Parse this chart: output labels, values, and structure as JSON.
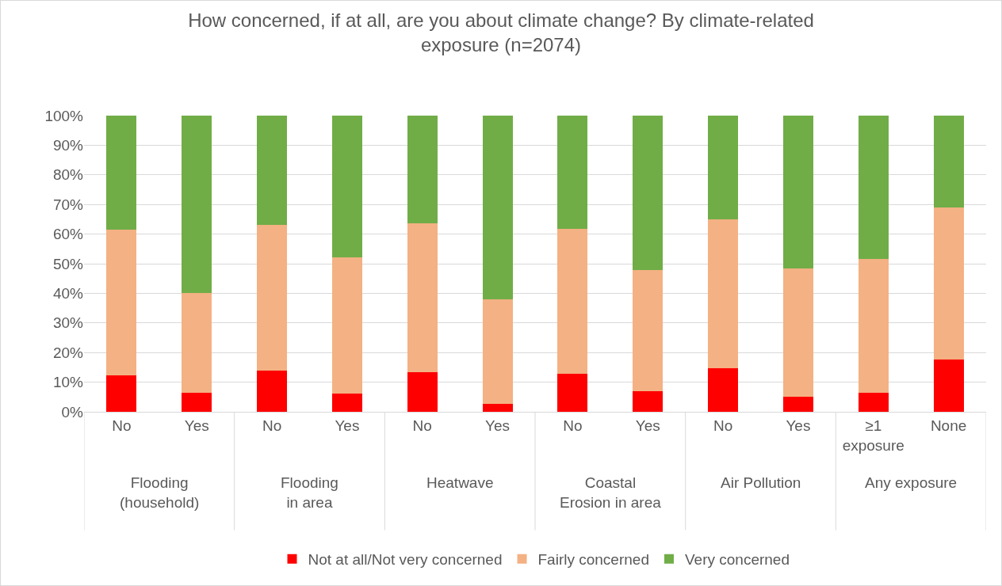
{
  "chart_data": {
    "type": "bar",
    "title": "How concerned, if at all, are you about climate change? By climate-related exposure (n=2074)",
    "categories": [
      "No",
      "Yes",
      "No",
      "Yes",
      "No",
      "Yes",
      "No",
      "Yes",
      "No",
      "Yes",
      "≥1 exposure",
      "None"
    ],
    "annotations": [
      "Flooding (household)",
      "Flooding in area",
      "Heatwave",
      "Coastal Erosion in area",
      "Air Pollution",
      "Any exposure"
    ],
    "stacked": true,
    "series": [
      {
        "name": "Not at all/Not very concerned",
        "color": "#ff0000",
        "values": [
          12.2,
          6.4,
          13.8,
          6.1,
          13.3,
          2.7,
          12.8,
          6.9,
          14.6,
          5.1,
          6.4,
          17.6
        ]
      },
      {
        "name": "Fairly concerned",
        "color": "#f4b183",
        "values": [
          49.4,
          33.8,
          49.2,
          46.0,
          50.3,
          35.3,
          48.9,
          41.0,
          50.3,
          43.3,
          45.2,
          51.5
        ]
      },
      {
        "name": "Very concerned",
        "color": "#70ad47",
        "values": [
          38.4,
          59.8,
          37.0,
          47.9,
          36.4,
          62.0,
          38.3,
          52.1,
          35.1,
          51.6,
          48.4,
          30.9
        ]
      }
    ],
    "ylim": [
      0,
      100
    ],
    "yticks": [
      {
        "value": 0,
        "label": "0%"
      },
      {
        "value": 10,
        "label": "10%"
      },
      {
        "value": 20,
        "label": "20%"
      },
      {
        "value": 30,
        "label": "30%"
      },
      {
        "value": 40,
        "label": "40%"
      },
      {
        "value": 50,
        "label": "50%"
      },
      {
        "value": 60,
        "label": "60%"
      },
      {
        "value": 70,
        "label": "70%"
      },
      {
        "value": 80,
        "label": "80%"
      },
      {
        "value": 90,
        "label": "90%"
      },
      {
        "value": 100,
        "label": "100%"
      }
    ],
    "grid": "y",
    "legend": "bottom"
  }
}
